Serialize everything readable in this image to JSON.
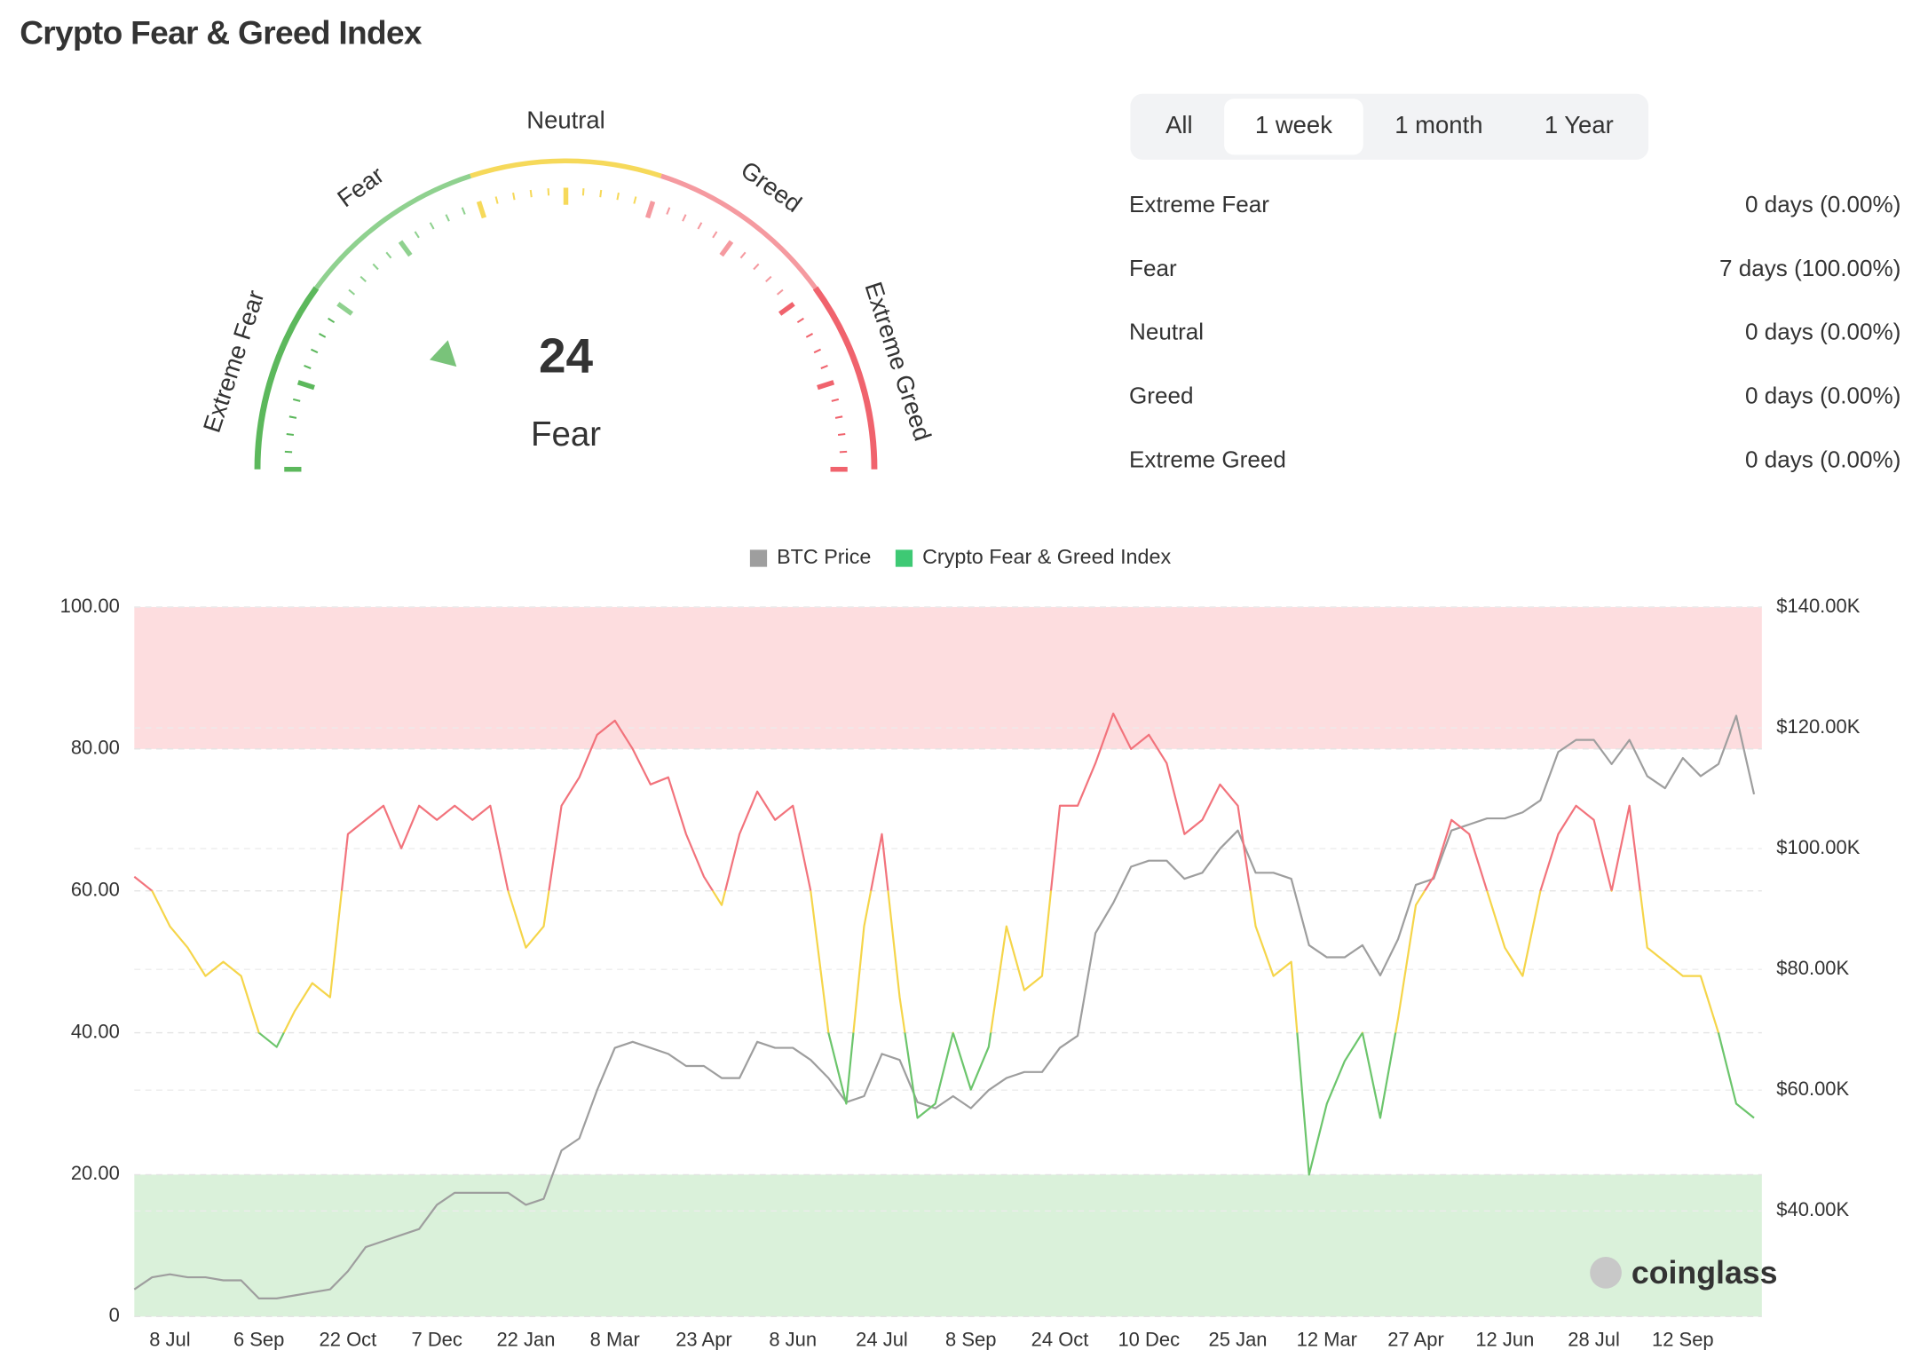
{
  "header": {
    "title": "Crypto Fear & Greed Index"
  },
  "gauge": {
    "value": 24,
    "label": "Fear",
    "min": 0,
    "max": 100,
    "value_color": "#79c37a",
    "segments": [
      {
        "name": "Extreme Fear",
        "from": 0,
        "to": 20,
        "color": "#5cb85c"
      },
      {
        "name": "Fear",
        "from": 20,
        "to": 40,
        "color": "#8fd18f"
      },
      {
        "name": "Neutral",
        "from": 40,
        "to": 60,
        "color": "#f6d95a"
      },
      {
        "name": "Greed",
        "from": 60,
        "to": 80,
        "color": "#f59aa0"
      },
      {
        "name": "Extreme Greed",
        "from": 80,
        "to": 100,
        "color": "#f0636d"
      }
    ]
  },
  "tabs": {
    "items": [
      "All",
      "1 week",
      "1 month",
      "1 Year"
    ],
    "active": 1
  },
  "stats": [
    {
      "name": "Extreme Fear",
      "value": "0 days (0.00%)"
    },
    {
      "name": "Fear",
      "value": "7 days (100.00%)"
    },
    {
      "name": "Neutral",
      "value": "0 days (0.00%)"
    },
    {
      "name": "Greed",
      "value": "0 days (0.00%)"
    },
    {
      "name": "Extreme Greed",
      "value": "0 days (0.00%)"
    }
  ],
  "watermark": "coinglass",
  "chart_data": {
    "type": "line",
    "categories": [
      null,
      null,
      "8 Jul",
      null,
      null,
      null,
      null,
      "6 Sep",
      null,
      null,
      null,
      null,
      "22 Oct",
      null,
      null,
      null,
      null,
      "7 Dec",
      null,
      null,
      null,
      null,
      "22 Jan",
      null,
      null,
      null,
      null,
      "8 Mar",
      null,
      null,
      null,
      null,
      "23 Apr",
      null,
      null,
      null,
      null,
      "8 Jun",
      null,
      null,
      null,
      null,
      "24 Jul",
      null,
      null,
      null,
      null,
      "8 Sep",
      null,
      null,
      null,
      null,
      "24 Oct",
      null,
      null,
      null,
      null,
      "10 Dec",
      null,
      null,
      null,
      null,
      "25 Jan",
      null,
      null,
      null,
      null,
      "12 Mar",
      null,
      null,
      null,
      null,
      "27 Apr",
      null,
      null,
      null,
      null,
      "12 Jun",
      null,
      null,
      null,
      null,
      "28 Jul",
      null,
      null,
      null,
      null,
      "12 Sep",
      null,
      null,
      null,
      null
    ],
    "series": [
      {
        "name": "BTC Price",
        "color": "#9e9e9e",
        "axis": "y2",
        "values": [
          27000,
          29000,
          29500,
          29000,
          29000,
          28500,
          28500,
          25500,
          25500,
          26000,
          26500,
          27000,
          30000,
          34000,
          35000,
          36000,
          37000,
          41000,
          43000,
          43000,
          43000,
          43000,
          41000,
          42000,
          50000,
          52000,
          60000,
          67000,
          68000,
          67000,
          66000,
          64000,
          64000,
          62000,
          62000,
          68000,
          67000,
          67000,
          65000,
          62000,
          58000,
          59000,
          66000,
          65000,
          58000,
          57000,
          59000,
          57000,
          60000,
          62000,
          63000,
          63000,
          67000,
          69000,
          86000,
          91000,
          97000,
          98000,
          98000,
          95000,
          96000,
          100000,
          103000,
          96000,
          96000,
          95000,
          84000,
          82000,
          82000,
          84000,
          79000,
          85000,
          94000,
          95000,
          103000,
          104000,
          105000,
          105000,
          106000,
          108000,
          116000,
          118000,
          118000,
          114000,
          118000,
          112000,
          110000,
          115000,
          112000,
          114000,
          122000,
          109000
        ]
      },
      {
        "name": "Crypto Fear & Greed Index",
        "color": "#3ec974",
        "values": [
          62,
          60,
          55,
          52,
          48,
          50,
          48,
          40,
          38,
          43,
          47,
          45,
          68,
          70,
          72,
          66,
          72,
          70,
          72,
          70,
          72,
          60,
          52,
          55,
          72,
          76,
          82,
          84,
          80,
          75,
          76,
          68,
          62,
          58,
          68,
          74,
          70,
          72,
          60,
          40,
          30,
          55,
          68,
          45,
          28,
          30,
          40,
          32,
          38,
          55,
          46,
          48,
          72,
          72,
          78,
          85,
          80,
          82,
          78,
          68,
          70,
          75,
          72,
          55,
          48,
          50,
          20,
          30,
          36,
          40,
          28,
          42,
          58,
          62,
          70,
          68,
          60,
          52,
          48,
          60,
          68,
          72,
          70,
          60,
          72,
          52,
          50,
          48,
          48,
          40,
          30,
          28
        ],
        "line_color_bands": [
          {
            "from": 0,
            "to": 40,
            "color": "#6cc56c"
          },
          {
            "from": 40,
            "to": 60,
            "color": "#f5d54a"
          },
          {
            "from": 60,
            "to": 100,
            "color": "#f2737c"
          }
        ]
      }
    ],
    "bands": [
      {
        "from": 80,
        "to": 100,
        "color": "#fdd9db"
      },
      {
        "from": 0,
        "to": 20,
        "color": "#d6efd6"
      }
    ],
    "ylim": [
      0,
      100
    ],
    "yticks": [
      0,
      {
        "value": 20,
        "label": "20.00"
      },
      {
        "value": 40,
        "label": "40.00"
      },
      {
        "value": 60,
        "label": "60.00"
      },
      {
        "value": 80,
        "label": "80.00"
      },
      {
        "value": 100,
        "label": "100.00"
      }
    ],
    "y2lim": [
      22500,
      140000
    ],
    "y2ticks": [
      {
        "value": 40000,
        "label": "$40.00K"
      },
      {
        "value": 60000,
        "label": "$60.00K"
      },
      {
        "value": 80000,
        "label": "$80.00K"
      },
      {
        "value": 100000,
        "label": "$100.00K"
      },
      {
        "value": 120000,
        "label": "$120.00K"
      },
      {
        "value": 140000,
        "label": "$140.00K"
      }
    ],
    "grid": true,
    "legend": "top"
  }
}
